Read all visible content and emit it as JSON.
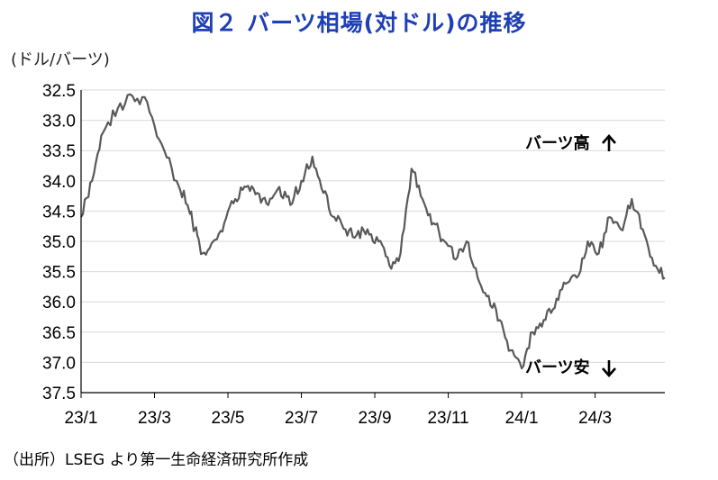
{
  "title": "図２ バーツ相場(対ドル)の推移",
  "unit_label": "(ドル/バーツ)",
  "source_note": "（出所）LSEG より第一生命経済研究所作成",
  "colors": {
    "title": "#1f3fb5",
    "line": "#595959",
    "axis": "#000000",
    "grid": "#d9d9d9"
  },
  "chart_data": {
    "type": "line",
    "title": "図２ バーツ相場(対ドル)の推移",
    "ylabel": "(ドル/バーツ)",
    "y_inverted": true,
    "ylim": [
      32.5,
      37.5
    ],
    "y_ticks": [
      "32.5",
      "33.0",
      "33.5",
      "34.0",
      "34.5",
      "35.0",
      "35.5",
      "36.0",
      "36.5",
      "37.0",
      "37.5"
    ],
    "x_ticks": [
      "23/1",
      "23/3",
      "23/5",
      "23/7",
      "23/9",
      "23/11",
      "24/1",
      "24/3"
    ],
    "grid": "horizontal",
    "annotations": [
      {
        "text": "バーツ高",
        "arrow": "up"
      },
      {
        "text": "バーツ安",
        "arrow": "down"
      }
    ],
    "series": [
      {
        "x": [
          0,
          0.3,
          0.6,
          1.0,
          1.4,
          1.8,
          2.2,
          2.6,
          2.9,
          3.1,
          3.3,
          3.6,
          3.9,
          4.2,
          4.5,
          4.8,
          5.1,
          5.4,
          5.7,
          6.0,
          6.3,
          6.6,
          6.9,
          7.2,
          7.5,
          7.8,
          8.1,
          8.4,
          8.7,
          9.0,
          9.3,
          9.6,
          9.9,
          10.2,
          10.5,
          10.8,
          11.1,
          11.4,
          11.7,
          12.0,
          12.3,
          12.6,
          12.9,
          13.2,
          13.5,
          13.8,
          14.1,
          14.4,
          14.7,
          15.0,
          15.3,
          15.6,
          15.9
        ],
        "values": [
          34.6,
          34.0,
          33.2,
          32.8,
          32.6,
          32.7,
          33.4,
          34.0,
          34.4,
          34.8,
          35.2,
          35.0,
          34.7,
          34.3,
          34.1,
          34.2,
          34.4,
          34.1,
          34.4,
          34.0,
          33.6,
          34.2,
          34.6,
          34.8,
          34.9,
          34.8,
          35.0,
          35.4,
          35.2,
          33.8,
          34.3,
          34.7,
          35.0,
          35.3,
          35.0,
          35.6,
          35.9,
          36.3,
          36.8,
          37.1,
          36.5,
          36.3,
          36.1,
          35.7,
          35.6,
          35.0,
          35.2,
          34.6,
          34.8,
          34.3,
          34.8,
          35.4,
          35.6
        ]
      }
    ]
  }
}
